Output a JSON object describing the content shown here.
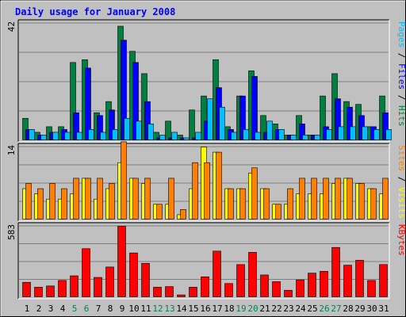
{
  "chart_data": {
    "type": "bar",
    "title": "Daily usage for January 2008",
    "x": [
      1,
      2,
      3,
      4,
      5,
      6,
      7,
      8,
      9,
      10,
      11,
      12,
      13,
      14,
      15,
      16,
      17,
      18,
      19,
      20,
      21,
      22,
      23,
      24,
      25,
      26,
      27,
      28,
      29,
      30,
      31
    ],
    "weekend_days": [
      5,
      6,
      12,
      13,
      19,
      20,
      26,
      27
    ],
    "panels": [
      {
        "name": "hits-files-pages",
        "ymax": 42,
        "ymax_label": "42",
        "right_label": [
          {
            "text": "Pages",
            "color": "#00c0ff"
          },
          {
            "text": " / ",
            "color": "#000000"
          },
          {
            "text": "Files",
            "color": "#0000ff"
          },
          {
            "text": " / ",
            "color": "#000000"
          },
          {
            "text": "Hits",
            "color": "#008040"
          }
        ],
        "series": [
          {
            "name": "Hits",
            "color": "#008040",
            "values": [
              8,
              3,
              5,
              5,
              28,
              29,
              10,
              14,
              41,
              32,
              24,
              3,
              7,
              2,
              11,
              16,
              29,
              5,
              16,
              25,
              9,
              6,
              2,
              9,
              2,
              16,
              24,
              14,
              13,
              5,
              16
            ]
          },
          {
            "name": "Files",
            "color": "#0000ff",
            "values": [
              4,
              2,
              3,
              4,
              10,
              26,
              9,
              11,
              36,
              28,
              14,
              1,
              1,
              1,
              1,
              7,
              19,
              4,
              16,
              23,
              3,
              4,
              2,
              6,
              2,
              5,
              15,
              12,
              9,
              5,
              10
            ]
          },
          {
            "name": "Pages",
            "color": "#00c0ff",
            "values": [
              4,
              2,
              3,
              3,
              3,
              4,
              3,
              4,
              8,
              7,
              6,
              2,
              3,
              1,
              3,
              15,
              12,
              3,
              4,
              3,
              7,
              4,
              2,
              2,
              2,
              4,
              5,
              5,
              5,
              4,
              4
            ]
          }
        ]
      },
      {
        "name": "visits-sites",
        "ymax": 14,
        "ymax_label": "14",
        "right_label": [
          {
            "text": "Sites",
            "color": "#ff8000"
          },
          {
            "text": " / ",
            "color": "#000000"
          },
          {
            "text": "Visits",
            "color": "#ffff00"
          }
        ],
        "series": [
          {
            "name": "Visits",
            "color": "#ffff00",
            "values": [
              6,
              5,
              4,
              4,
              5,
              8,
              4,
              6,
              11,
              8,
              7,
              3,
              3,
              1,
              6,
              14,
              13,
              6,
              6,
              9,
              6,
              3,
              3,
              5,
              5,
              5,
              7,
              8,
              7,
              6,
              5
            ]
          },
          {
            "name": "Sites",
            "color": "#ff8000",
            "values": [
              7,
              6,
              7,
              6,
              8,
              8,
              8,
              7,
              15,
              8,
              8,
              3,
              8,
              2,
              11,
              11,
              13,
              6,
              6,
              10,
              6,
              3,
              6,
              8,
              8,
              8,
              8,
              8,
              7,
              6,
              8
            ]
          }
        ]
      },
      {
        "name": "kbytes",
        "ymax": 583,
        "ymax_label": "583",
        "right_label": [
          {
            "text": "KBytes",
            "color": "#ff0000"
          }
        ],
        "series": [
          {
            "name": "KBytes",
            "color": "#ff0000",
            "values": [
              125,
              85,
              95,
              140,
              178,
              400,
              165,
              250,
              583,
              365,
              280,
              85,
              90,
              22,
              85,
              170,
              380,
              115,
              270,
              370,
              185,
              130,
              60,
              145,
              200,
              215,
              410,
              265,
              305,
              140,
              270
            ]
          }
        ]
      }
    ]
  }
}
